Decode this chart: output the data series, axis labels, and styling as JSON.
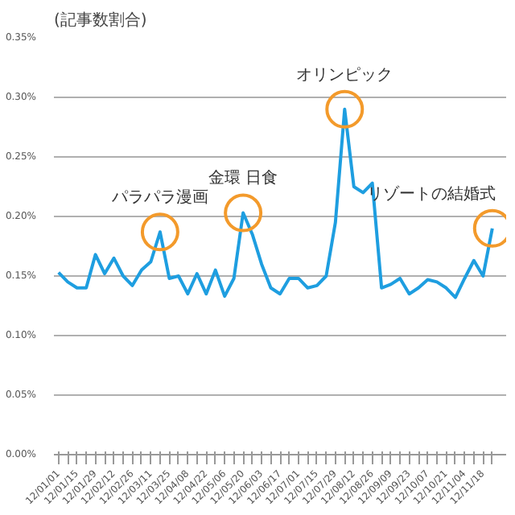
{
  "chart_data": {
    "type": "line",
    "ylabel": "(記事数割合)",
    "categories": [
      "12/01/01",
      null,
      "12/01/15",
      null,
      "12/01/29",
      null,
      "12/02/12",
      null,
      "12/02/26",
      null,
      "12/03/11",
      null,
      "12/03/25",
      null,
      "12/04/08",
      null,
      "12/04/22",
      null,
      "12/05/06",
      null,
      "12/05/20",
      null,
      "12/06/03",
      null,
      "12/06/17",
      null,
      "12/07/01",
      null,
      "12/07/15",
      null,
      "12/07/29",
      null,
      "12/08/12",
      null,
      "12/08/26",
      null,
      "12/09/09",
      null,
      "12/09/23",
      null,
      "12/10/07",
      null,
      "12/10/21",
      null,
      "12/11/04",
      null,
      "12/11/18",
      null
    ],
    "series": [
      {
        "color": "#1e9ee0",
        "values": [
          0.153,
          0.145,
          0.14,
          0.14,
          0.168,
          0.152,
          0.165,
          0.15,
          0.142,
          0.155,
          0.162,
          0.187,
          0.148,
          0.15,
          0.135,
          0.152,
          0.135,
          0.155,
          0.133,
          0.148,
          0.203,
          0.185,
          0.16,
          0.14,
          0.135,
          0.148,
          0.148,
          0.14,
          0.142,
          0.15,
          0.195,
          0.29,
          0.225,
          0.22,
          0.228,
          0.14,
          0.143,
          0.148,
          0.135,
          0.14,
          0.147,
          0.145,
          0.14,
          0.132,
          0.148,
          0.163,
          0.15,
          0.19
        ]
      }
    ],
    "ylim": [
      0,
      0.35
    ],
    "yticks": [
      {
        "value": 0,
        "label": "0.00%"
      },
      {
        "value": 0.05,
        "label": "0.05%"
      },
      {
        "value": 0.1,
        "label": "0.10%"
      },
      {
        "value": 0.15,
        "label": "0.15%"
      },
      {
        "value": 0.2,
        "label": "0.20%"
      },
      {
        "value": 0.25,
        "label": "0.25%"
      },
      {
        "value": 0.3,
        "label": "0.30%"
      },
      {
        "value": 0.35,
        "label": "0.35%"
      }
    ],
    "grid": "y",
    "marker": "none",
    "line_style": "solid",
    "annotations": [
      {
        "text": "パラパラ漫画",
        "y": 0.187
      },
      {
        "text": "金環 日食",
        "y": 0.203
      },
      {
        "text": "オリンピック",
        "y": 0.29
      },
      "リゾートの結婚式"
    ]
  }
}
